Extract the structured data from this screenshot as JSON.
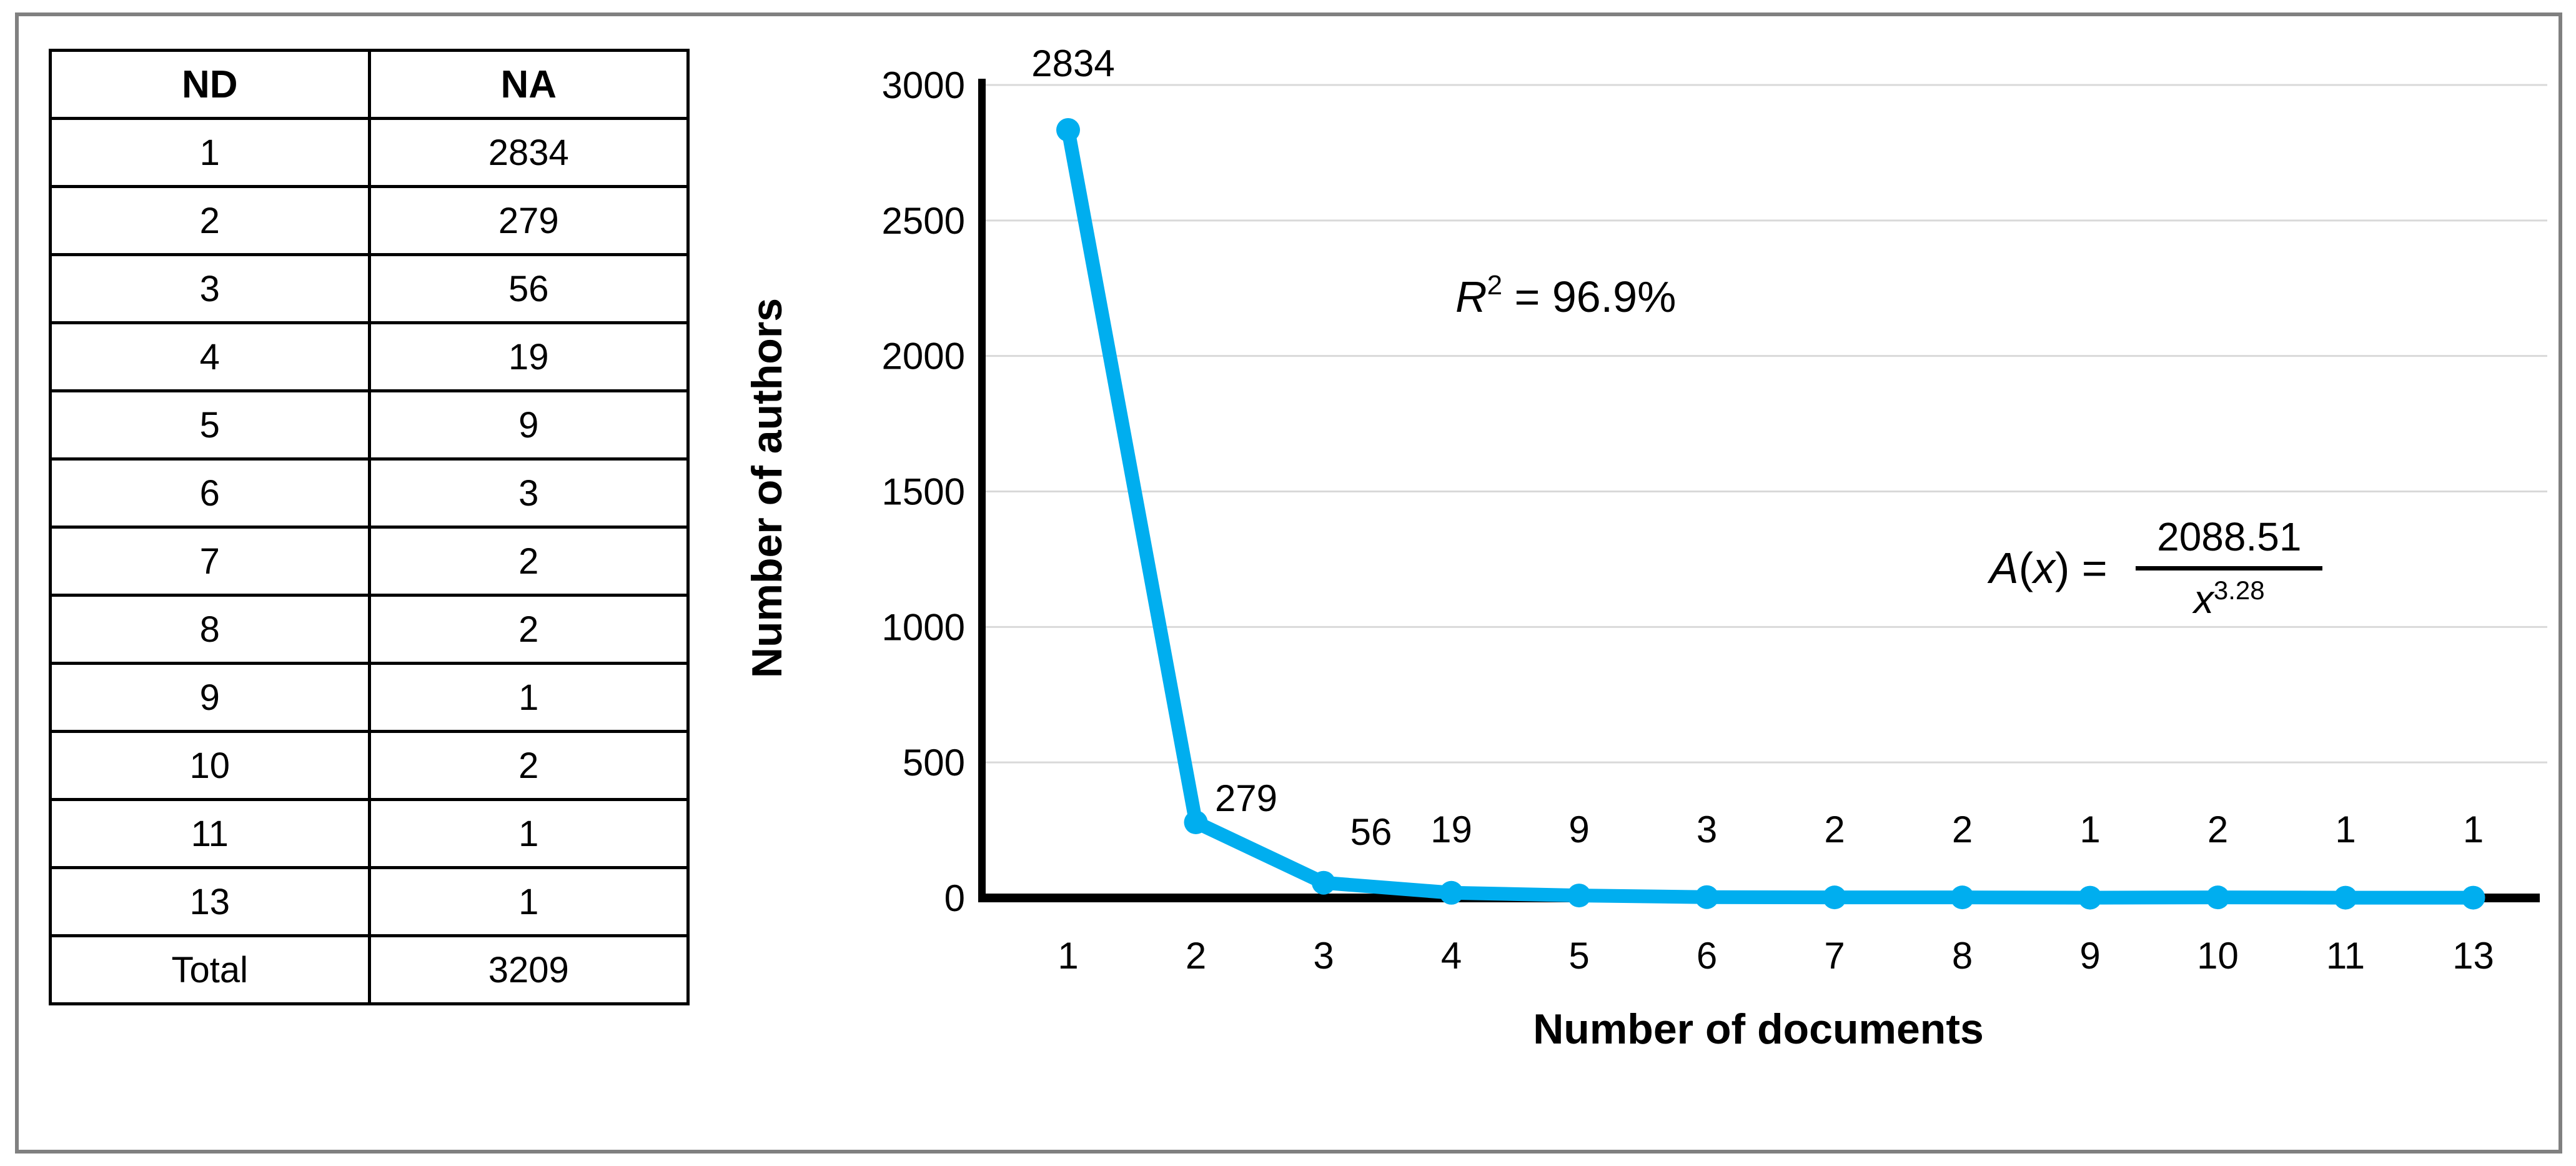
{
  "colors": {
    "accent_cyan": "#00AEEF",
    "gridline_gray": "#D9D9D9",
    "axis_black": "#000000",
    "frame_gray": "#808080",
    "table_border": "#000000"
  },
  "table": {
    "headers": [
      "ND",
      "NA"
    ],
    "rows": [
      [
        "1",
        "2834"
      ],
      [
        "2",
        "279"
      ],
      [
        "3",
        "56"
      ],
      [
        "4",
        "19"
      ],
      [
        "5",
        "9"
      ],
      [
        "6",
        "3"
      ],
      [
        "7",
        "2"
      ],
      [
        "8",
        "2"
      ],
      [
        "9",
        "1"
      ],
      [
        "10",
        "2"
      ],
      [
        "11",
        "1"
      ],
      [
        "13",
        "1"
      ],
      [
        "Total",
        "3209"
      ]
    ]
  },
  "chart_data": {
    "type": "line",
    "categories": [
      "1",
      "2",
      "3",
      "4",
      "5",
      "6",
      "7",
      "8",
      "9",
      "10",
      "11",
      "13"
    ],
    "values": [
      2834,
      279,
      56,
      19,
      9,
      3,
      2,
      2,
      1,
      2,
      1,
      1
    ],
    "data_labels": [
      "2834",
      "279",
      "56",
      "19",
      "9",
      "3",
      "2",
      "2",
      "1",
      "2",
      "1",
      "1"
    ],
    "xlabel": "Number of documents",
    "ylabel": "Number of authors",
    "ylim": [
      0,
      3000
    ],
    "yticks": [
      0,
      500,
      1000,
      1500,
      2000,
      2500,
      3000
    ],
    "grid": "horizontal",
    "legend": "none",
    "line_color": "#00AEEF",
    "annotations": {
      "r_squared": {
        "base": "R",
        "exponent": "2",
        "rest": " = 96.9%"
      },
      "fit_formula": {
        "lhs_symbol": "A",
        "lhs_open": "(",
        "lhs_var": "x",
        "lhs_close": ") = ",
        "numerator": "2088.51",
        "denominator_base": "x",
        "denominator_exponent": "3.28"
      }
    }
  }
}
